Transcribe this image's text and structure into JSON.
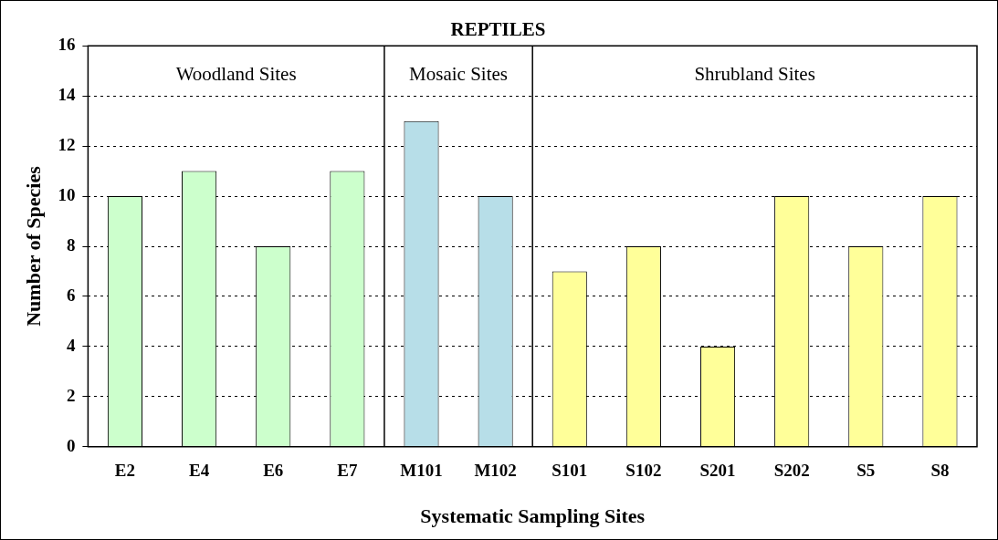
{
  "chart_data": {
    "type": "bar",
    "title": "REPTILES",
    "xlabel": "Systematic Sampling Sites",
    "ylabel": "Number of Species",
    "categories": [
      "E2",
      "E4",
      "E6",
      "E7",
      "M101",
      "M102",
      "S101",
      "S102",
      "S201",
      "S202",
      "S5",
      "S8"
    ],
    "values": [
      10,
      11,
      8,
      11,
      13,
      10,
      7,
      8,
      4,
      10,
      8,
      10
    ],
    "colors": [
      "#ccffcc",
      "#ccffcc",
      "#ccffcc",
      "#ccffcc",
      "#b7dee8",
      "#b7dee8",
      "#ffff99",
      "#ffff99",
      "#ffff99",
      "#ffff99",
      "#ffff99",
      "#ffff99"
    ],
    "ylim": [
      0,
      16
    ],
    "yticks": [
      0,
      2,
      4,
      6,
      8,
      10,
      12,
      14,
      16
    ],
    "grid": "y",
    "legend": false,
    "annotations": [
      "Woodland Sites",
      "Mosaic Sites",
      "Shrubland Sites"
    ]
  }
}
